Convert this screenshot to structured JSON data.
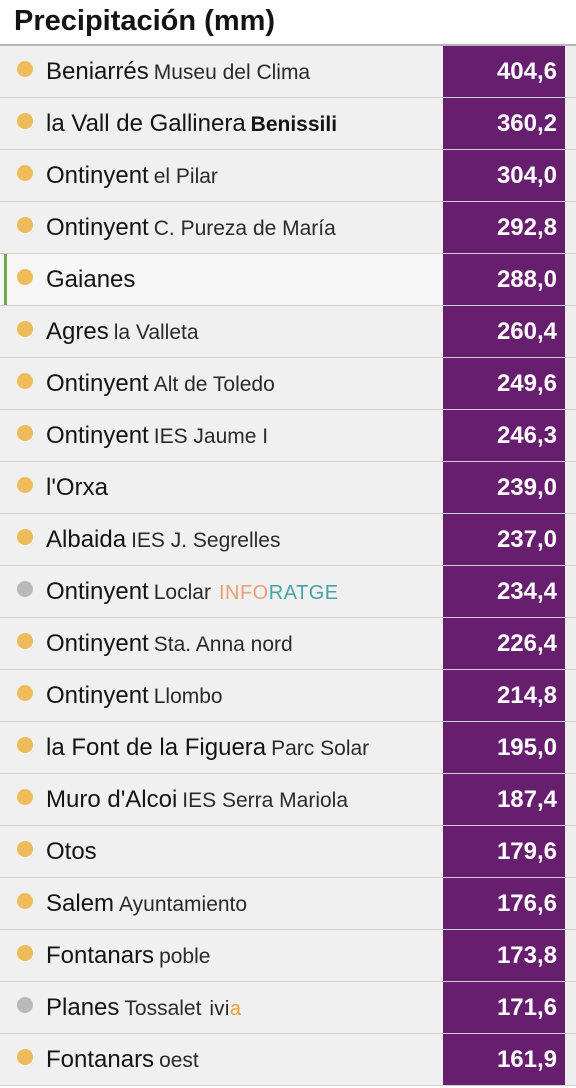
{
  "title": "Precipitación (mm)",
  "colors": {
    "value_bg": "#671e6f",
    "dot_orange": "#f0bb5b",
    "dot_grey": "#b9b9b9",
    "highlight_bar": "#6aab4d"
  },
  "rows": [
    {
      "location": "Beniarrés",
      "station": "Museu del Clima",
      "value": "404,6",
      "dot": "orange"
    },
    {
      "location": "la Vall de Gallinera",
      "station": "Benissili",
      "station_bold": true,
      "value": "360,2",
      "dot": "orange"
    },
    {
      "location": "Ontinyent",
      "station": "el Pilar",
      "value": "304,0",
      "dot": "orange"
    },
    {
      "location": "Ontinyent",
      "station": "C. Pureza de María",
      "value": "292,8",
      "dot": "orange"
    },
    {
      "location": "Gaianes",
      "station": "",
      "value": "288,0",
      "dot": "orange",
      "highlighted": true
    },
    {
      "location": "Agres",
      "station": "la Valleta",
      "value": "260,4",
      "dot": "orange"
    },
    {
      "location": "Ontinyent",
      "station": "Alt de Toledo",
      "value": "249,6",
      "dot": "orange"
    },
    {
      "location": "Ontinyent",
      "station": "IES Jaume I",
      "value": "246,3",
      "dot": "orange"
    },
    {
      "location": "l'Orxa",
      "station": "",
      "value": "239,0",
      "dot": "orange"
    },
    {
      "location": "Albaida",
      "station": "IES J. Segrelles",
      "value": "237,0",
      "dot": "orange"
    },
    {
      "location": "Ontinyent",
      "station": "Loclar",
      "value": "234,4",
      "dot": "grey",
      "source": {
        "kind": "inforatge",
        "part_a": "INFO",
        "part_b": "RATGE"
      }
    },
    {
      "location": "Ontinyent",
      "station": "Sta. Anna nord",
      "value": "226,4",
      "dot": "orange"
    },
    {
      "location": "Ontinyent",
      "station": "Llombo",
      "value": "214,8",
      "dot": "orange"
    },
    {
      "location": "la Font de la Figuera",
      "station": "Parc Solar",
      "value": "195,0",
      "dot": "orange"
    },
    {
      "location": "Muro d'Alcoi",
      "station": "IES Serra Mariola",
      "value": "187,4",
      "dot": "orange"
    },
    {
      "location": "Otos",
      "station": "",
      "value": "179,6",
      "dot": "orange"
    },
    {
      "location": "Salem",
      "station": "Ayuntamiento",
      "value": "176,6",
      "dot": "orange"
    },
    {
      "location": "Fontanars",
      "station": "poble",
      "value": "173,8",
      "dot": "orange"
    },
    {
      "location": "Planes",
      "station": "Tossalet",
      "value": "171,6",
      "dot": "grey",
      "source": {
        "kind": "ivia",
        "part_a": "ivi",
        "part_b": "a"
      }
    },
    {
      "location": "Fontanars",
      "station": "oest",
      "value": "161,9",
      "dot": "orange"
    }
  ]
}
